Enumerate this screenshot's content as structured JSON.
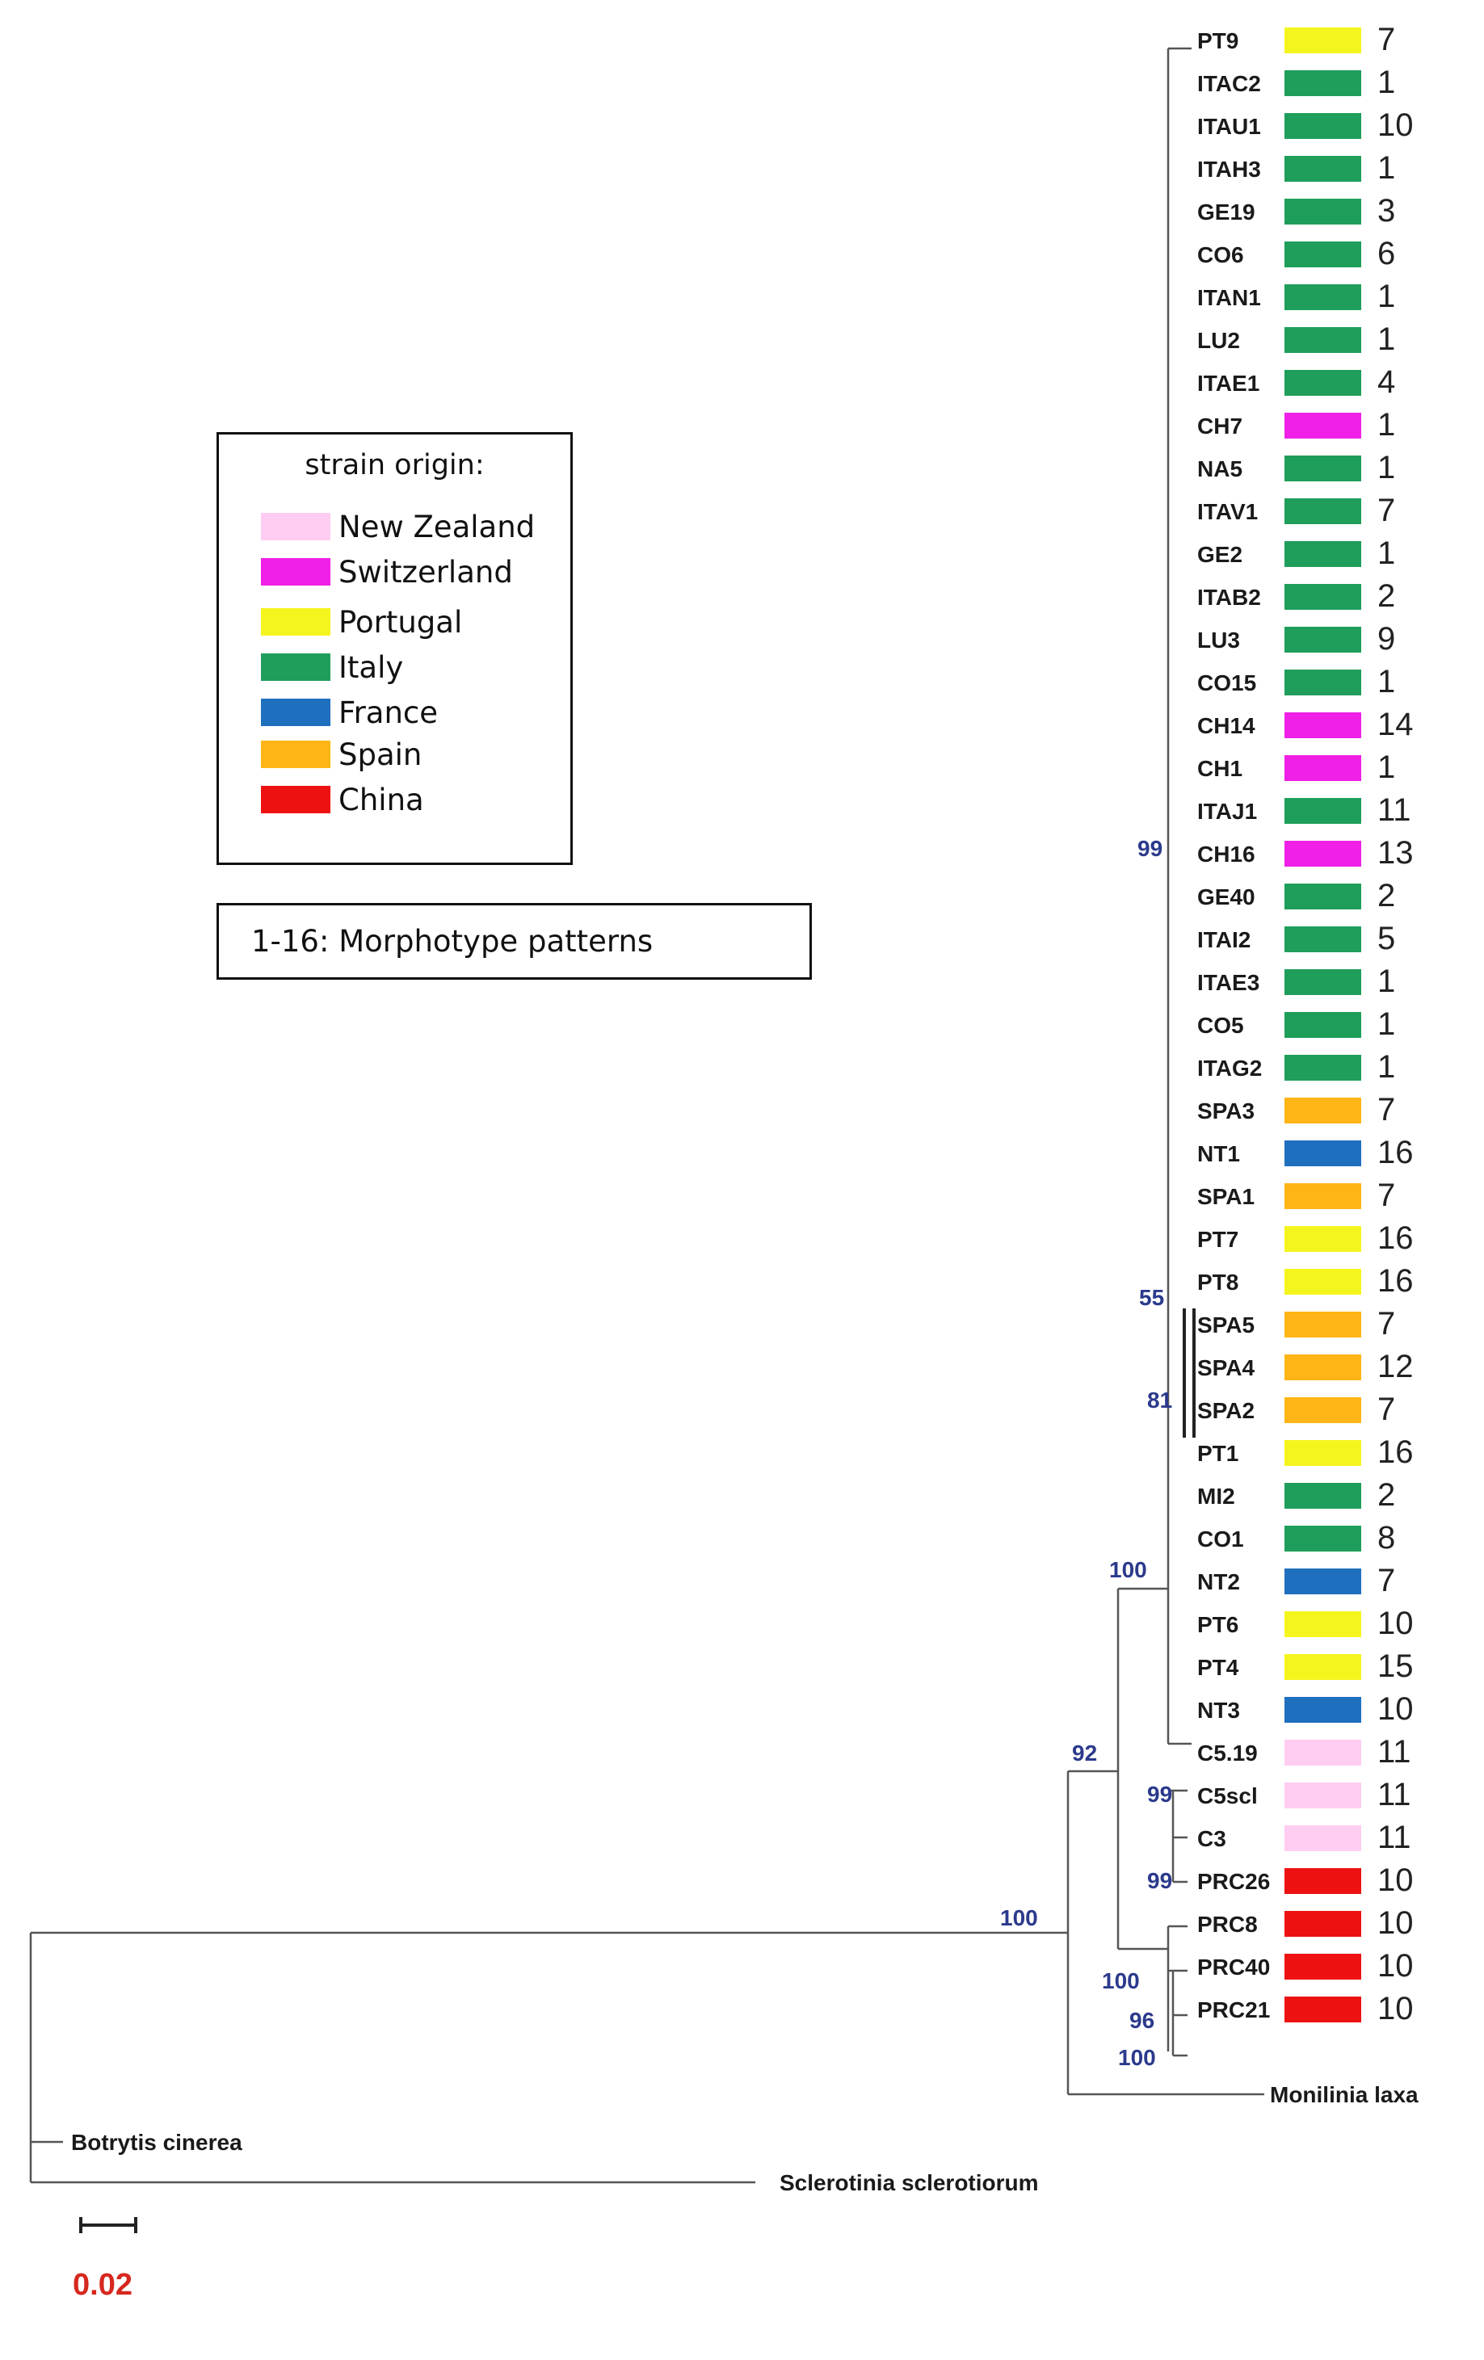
{
  "legend": {
    "title": "strain origin:",
    "items": [
      {
        "label": "New Zealand",
        "color": "#FFCCF2"
      },
      {
        "label": "Switzerland",
        "color": "#F020E6"
      },
      {
        "label": "Portugal",
        "color": "#F5F51E"
      },
      {
        "label": "Italy",
        "color": "#1E9E5A"
      },
      {
        "label": "France",
        "color": "#1F6FBF"
      },
      {
        "label": "Spain",
        "color": "#FFB515"
      },
      {
        "label": "China",
        "color": "#EE1111"
      }
    ]
  },
  "morphotype_note": "1-16:  Morphotype patterns",
  "origin_colors": {
    "NZ": "#FFCCF2",
    "CH": "#F020E6",
    "PT": "#F5F51E",
    "IT": "#1E9E5A",
    "FR": "#1F6FBF",
    "ES": "#FFB515",
    "CN": "#EE1111"
  },
  "leaves": [
    {
      "name": "PT9",
      "origin": "PT",
      "count": "7"
    },
    {
      "name": "ITAC2",
      "origin": "IT",
      "count": "1"
    },
    {
      "name": "ITAU1",
      "origin": "IT",
      "count": "10"
    },
    {
      "name": "ITAH3",
      "origin": "IT",
      "count": "1"
    },
    {
      "name": "GE19",
      "origin": "IT",
      "count": "3"
    },
    {
      "name": "CO6",
      "origin": "IT",
      "count": "6"
    },
    {
      "name": "ITAN1",
      "origin": "IT",
      "count": "1"
    },
    {
      "name": "LU2",
      "origin": "IT",
      "count": "1"
    },
    {
      "name": "ITAE1",
      "origin": "IT",
      "count": "4"
    },
    {
      "name": "CH7",
      "origin": "CH",
      "count": "1"
    },
    {
      "name": "NA5",
      "origin": "IT",
      "count": "1"
    },
    {
      "name": "ITAV1",
      "origin": "IT",
      "count": "7"
    },
    {
      "name": "GE2",
      "origin": "IT",
      "count": "1"
    },
    {
      "name": "ITAB2",
      "origin": "IT",
      "count": "2"
    },
    {
      "name": "LU3",
      "origin": "IT",
      "count": "9"
    },
    {
      "name": "CO15",
      "origin": "IT",
      "count": "1"
    },
    {
      "name": "CH14",
      "origin": "CH",
      "count": "14"
    },
    {
      "name": "CH1",
      "origin": "CH",
      "count": "1"
    },
    {
      "name": "ITAJ1",
      "origin": "IT",
      "count": "11"
    },
    {
      "name": "CH16",
      "origin": "CH",
      "count": "13"
    },
    {
      "name": "GE40",
      "origin": "IT",
      "count": "2"
    },
    {
      "name": "ITAI2",
      "origin": "IT",
      "count": "5"
    },
    {
      "name": "ITAE3",
      "origin": "IT",
      "count": "1"
    },
    {
      "name": "CO5",
      "origin": "IT",
      "count": "1"
    },
    {
      "name": "ITAG2",
      "origin": "IT",
      "count": "1"
    },
    {
      "name": "SPA3",
      "origin": "ES",
      "count": "7"
    },
    {
      "name": "NT1",
      "origin": "FR",
      "count": "16"
    },
    {
      "name": "SPA1",
      "origin": "ES",
      "count": "7"
    },
    {
      "name": "PT7",
      "origin": "PT",
      "count": "16"
    },
    {
      "name": "PT8",
      "origin": "PT",
      "count": "16"
    },
    {
      "name": "SPA5",
      "origin": "ES",
      "count": "7"
    },
    {
      "name": "SPA4",
      "origin": "ES",
      "count": "12"
    },
    {
      "name": "SPA2",
      "origin": "ES",
      "count": "7"
    },
    {
      "name": "PT1",
      "origin": "PT",
      "count": "16"
    },
    {
      "name": "MI2",
      "origin": "IT",
      "count": "2"
    },
    {
      "name": "CO1",
      "origin": "IT",
      "count": "8"
    },
    {
      "name": "NT2",
      "origin": "FR",
      "count": "7"
    },
    {
      "name": "PT6",
      "origin": "PT",
      "count": "10"
    },
    {
      "name": "PT4",
      "origin": "PT",
      "count": "15"
    },
    {
      "name": "NT3",
      "origin": "FR",
      "count": "10"
    },
    {
      "name": "C5.19",
      "origin": "NZ",
      "count": "11"
    },
    {
      "name": "C5scl",
      "origin": "NZ",
      "count": "11"
    },
    {
      "name": "C3",
      "origin": "NZ",
      "count": "11"
    },
    {
      "name": "PRC26",
      "origin": "CN",
      "count": "10"
    },
    {
      "name": "PRC8",
      "origin": "CN",
      "count": "10"
    },
    {
      "name": "PRC40",
      "origin": "CN",
      "count": "10"
    },
    {
      "name": "PRC21",
      "origin": "CN",
      "count": "10"
    }
  ],
  "outgroups": [
    "Monilinia laxa",
    "Botrytis cinerea",
    "Sclerotinia sclerotiorum"
  ],
  "support_values": [
    "99",
    "55",
    "81",
    "100",
    "92",
    "99",
    "99",
    "100",
    "100",
    "96",
    "100"
  ],
  "scale_bar": "0.02"
}
